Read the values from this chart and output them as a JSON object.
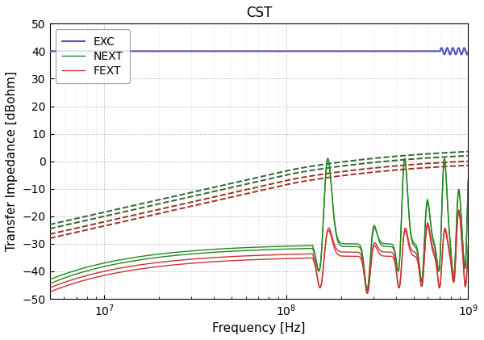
{
  "title": "CST",
  "xlabel": "Frequency [Hz]",
  "ylabel": "Transfer Impedance [dBohm]",
  "xlim": [
    5000000.0,
    1000000000.0
  ],
  "ylim": [
    -50,
    50
  ],
  "yticks": [
    -50,
    -40,
    -30,
    -20,
    -10,
    0,
    10,
    20,
    30,
    40,
    50
  ],
  "legend": [
    "EXC",
    "NEXT",
    "FEXT"
  ],
  "colors": {
    "EXC": "#5555bb",
    "NEXT_solid": "#228822",
    "NEXT_dashed": "#336633",
    "FEXT_solid": "#cc3333",
    "FEXT_dashed": "#993322"
  },
  "figsize": [
    6.0,
    4.21
  ],
  "dpi": 100
}
